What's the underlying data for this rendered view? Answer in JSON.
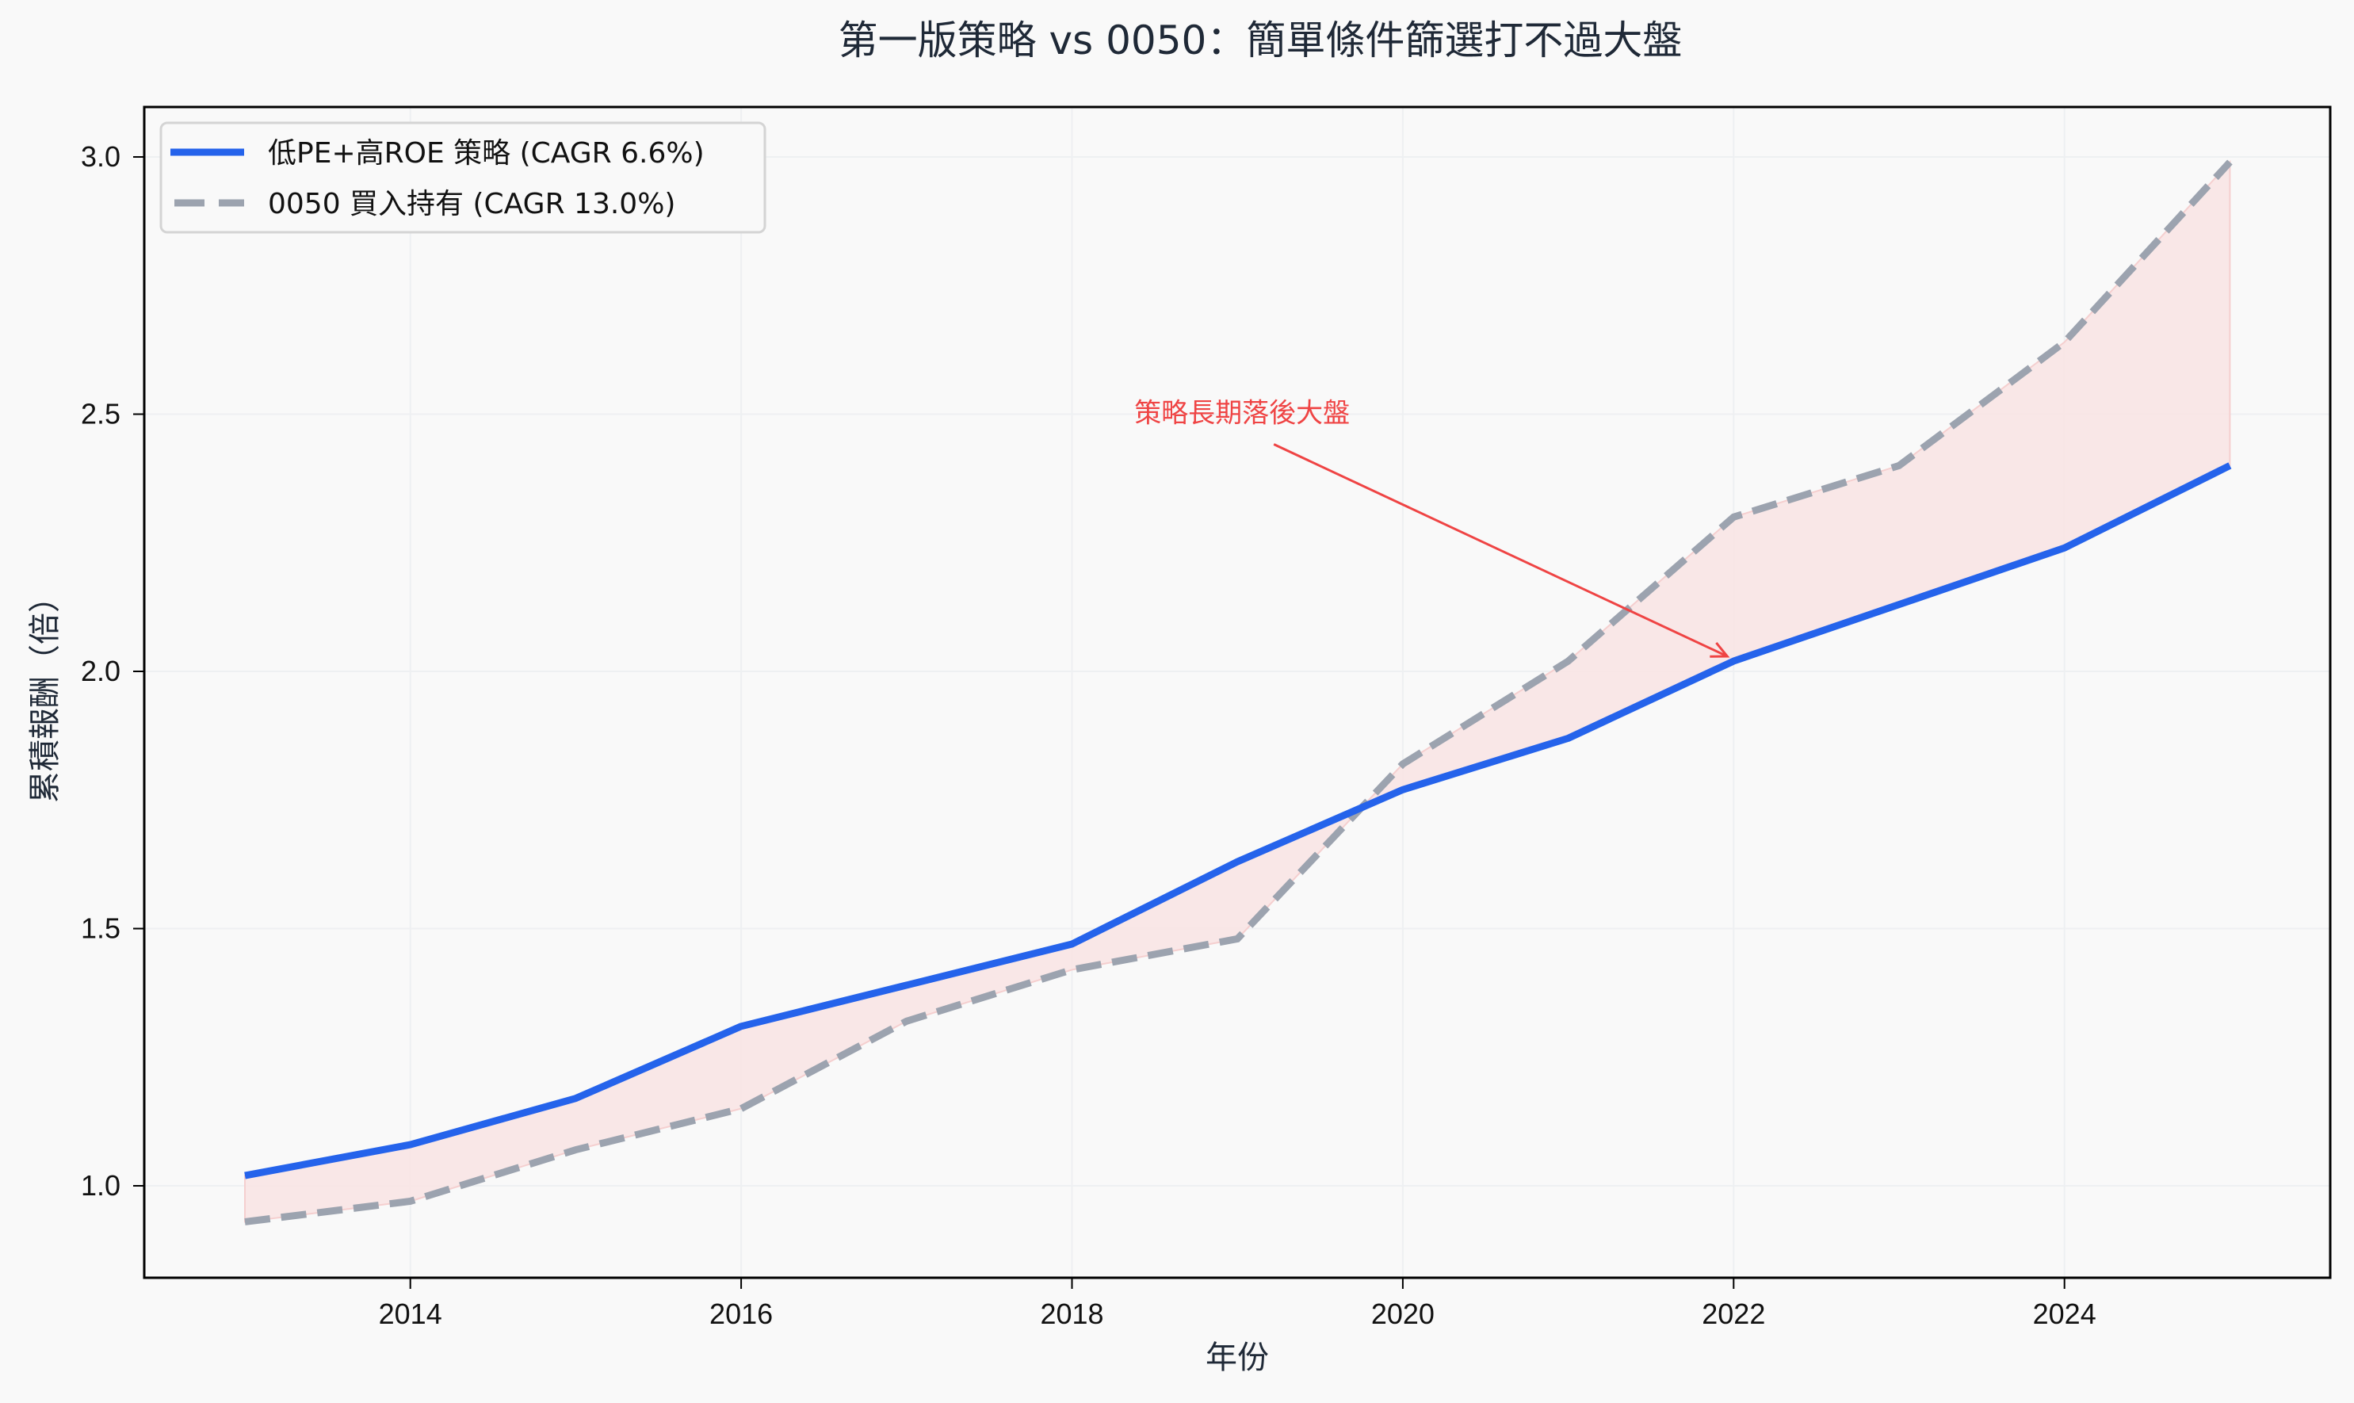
{
  "title": "第一版策略 vs 0050：簡單條件篩選打不過大盤",
  "xlabel": "年份",
  "ylabel": "累積報酬（倍）",
  "x_ticks": [
    "2014",
    "2016",
    "2018",
    "2020",
    "2022",
    "2024"
  ],
  "y_ticks": [
    "1.0",
    "1.5",
    "2.0",
    "2.5",
    "3.0"
  ],
  "legend": {
    "items": [
      {
        "label": "低PE+高ROE 策略 (CAGR 6.6%)",
        "color": "#2563eb",
        "style": "solid"
      },
      {
        "label": "0050 買入持有 (CAGR 13.0%)",
        "color": "#9ca3af",
        "style": "dashed"
      }
    ]
  },
  "annotation": {
    "text": "策略長期落後大盤",
    "color": "#ef4444",
    "target_year": 2022,
    "target_value": 2.02
  },
  "colors": {
    "strategy": "#2563eb",
    "benchmark": "#9ca3af",
    "fill": "#f8e4e4",
    "annotation": "#ef4444"
  },
  "chart_data": {
    "type": "line",
    "title": "第一版策略 vs 0050：簡單條件篩選打不過大盤",
    "xlabel": "年份",
    "ylabel": "累積報酬（倍）",
    "x": [
      2013,
      2014,
      2015,
      2016,
      2017,
      2018,
      2019,
      2020,
      2021,
      2022,
      2023,
      2024,
      2025
    ],
    "series": [
      {
        "name": "低PE+高ROE 策略 (CAGR 6.6%)",
        "style": "solid",
        "color": "#2563eb",
        "values": [
          1.02,
          1.08,
          1.17,
          1.31,
          1.39,
          1.47,
          1.63,
          1.77,
          1.87,
          2.02,
          2.13,
          2.24,
          2.4
        ]
      },
      {
        "name": "0050 買入持有 (CAGR 13.0%)",
        "style": "dashed",
        "color": "#9ca3af",
        "values": [
          0.93,
          0.97,
          1.07,
          1.15,
          1.32,
          1.42,
          1.48,
          1.82,
          2.02,
          2.3,
          2.4,
          2.64,
          2.99
        ]
      }
    ],
    "fill_between": {
      "color": "#f8e4e4",
      "alpha": 0.6
    },
    "xlim": [
      2012.6,
      2025.3
    ],
    "ylim": [
      0.82,
      3.08
    ],
    "grid": true,
    "legend_position": "upper left",
    "annotations": [
      {
        "text": "策略長期落後大盤",
        "xy": [
          2022,
          2.02
        ],
        "xytext": [
          2019,
          2.5
        ]
      }
    ]
  }
}
